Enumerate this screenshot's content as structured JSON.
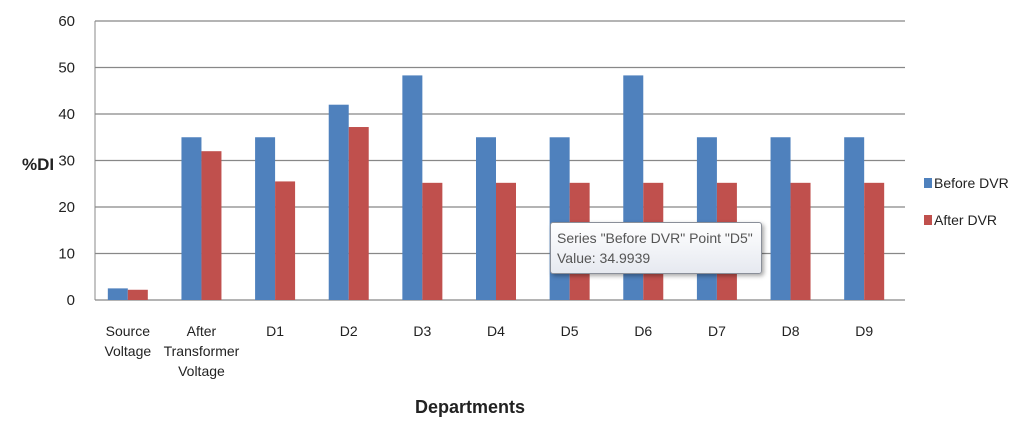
{
  "chart_data": {
    "type": "bar",
    "title": "",
    "xlabel": "Departments",
    "ylabel": "%DI",
    "ylim": [
      0,
      60
    ],
    "yticks": [
      0,
      10,
      20,
      30,
      40,
      50,
      60
    ],
    "grid": true,
    "legend_position": "right",
    "categories": [
      [
        "Source",
        "Voltage"
      ],
      [
        "After",
        "Transformer",
        "Voltage"
      ],
      [
        "D1"
      ],
      [
        "D2"
      ],
      [
        "D3"
      ],
      [
        "D4"
      ],
      [
        "D5"
      ],
      [
        "D6"
      ],
      [
        "D7"
      ],
      [
        "D8"
      ],
      [
        "D9"
      ]
    ],
    "series": [
      {
        "name": "Before DVR",
        "color": "#4f81bd",
        "values": [
          2.5,
          35,
          35,
          42,
          48.3,
          35,
          34.9939,
          48.3,
          35,
          35,
          35
        ]
      },
      {
        "name": "After DVR",
        "color": "#c0504d",
        "values": [
          2.2,
          32,
          25.5,
          37.2,
          25.2,
          25.2,
          25.2,
          25.2,
          25.2,
          25.2,
          25.2
        ]
      }
    ],
    "tooltip": {
      "line1": "Series \"Before DVR\" Point \"D5\"",
      "line2": "Value: 34.9939"
    }
  }
}
